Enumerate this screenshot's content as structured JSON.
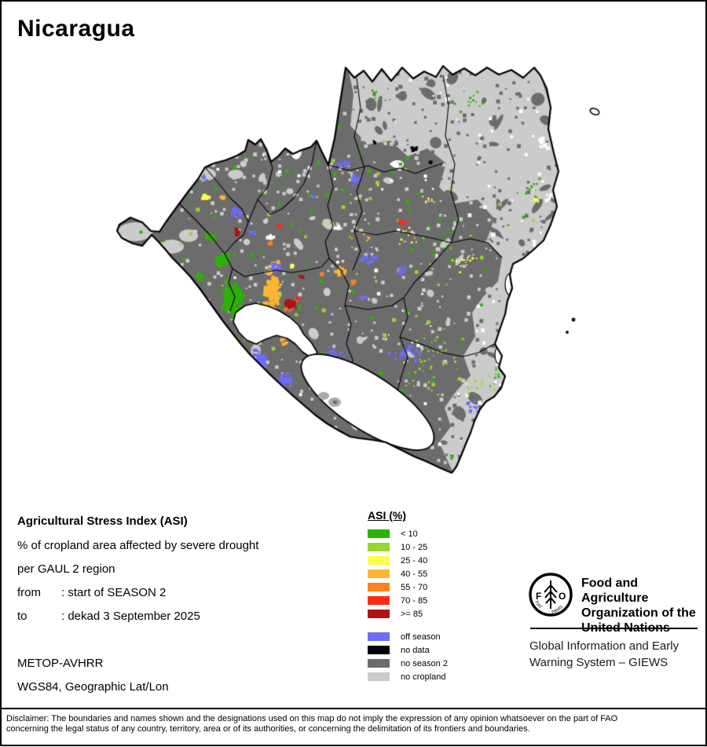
{
  "title": "Nicaragua",
  "legend": {
    "title": "ASI (%)",
    "asi_classes": [
      {
        "label": "< 10",
        "color": "#2DB200"
      },
      {
        "label": "10 - 25",
        "color": "#9BD531"
      },
      {
        "label": "25 - 40",
        "color": "#FFFF4D"
      },
      {
        "label": "40 - 55",
        "color": "#FFB434"
      },
      {
        "label": "55 - 70",
        "color": "#FF811E"
      },
      {
        "label": "70 - 85",
        "color": "#FF2A16"
      },
      {
        "label": ">= 85",
        "color": "#B01212"
      }
    ],
    "other_classes": [
      {
        "label": "off season",
        "color": "#6D6DF7"
      },
      {
        "label": "no data",
        "color": "#000000"
      },
      {
        "label": "no season 2",
        "color": "#6C6C6C"
      },
      {
        "label": "no cropland",
        "color": "#CBCBCB"
      }
    ]
  },
  "info": {
    "heading": "Agricultural Stress Index (ASI)",
    "line1": "% of cropland area affected by severe drought",
    "line2": "per GAUL 2 region",
    "from_label": "from",
    "from_value": ": start of SEASON 2",
    "to_label": "to",
    "to_value": ": dekad 3 September 2025"
  },
  "source": {
    "sensor": "METOP-AVHRR",
    "projection": "WGS84, Geographic Lat/Lon"
  },
  "fao": {
    "org_lines": [
      "Food and Agriculture",
      "Organization of the",
      "United Nations"
    ],
    "giews_lines": [
      "Global Information and Early",
      "Warning System – GIEWS"
    ],
    "logo_letter_left": "F",
    "logo_letter_right": "O",
    "logo_motto_left": "FIAT",
    "logo_motto_right": "PANIS"
  },
  "map": {
    "country": "Nicaragua",
    "water_color": "#FFFFFF",
    "boundary_color": "#000000"
  },
  "disclaimer": {
    "line1": "Disclaimer: The boundaries and names shown and the designations used on this map do not imply the expression of any opinion whatsoever on the part of FAO",
    "line2": "concerning the legal status of any country, territory, area or of its authorities, or concerning the delimitation of its frontiers and boundaries."
  }
}
